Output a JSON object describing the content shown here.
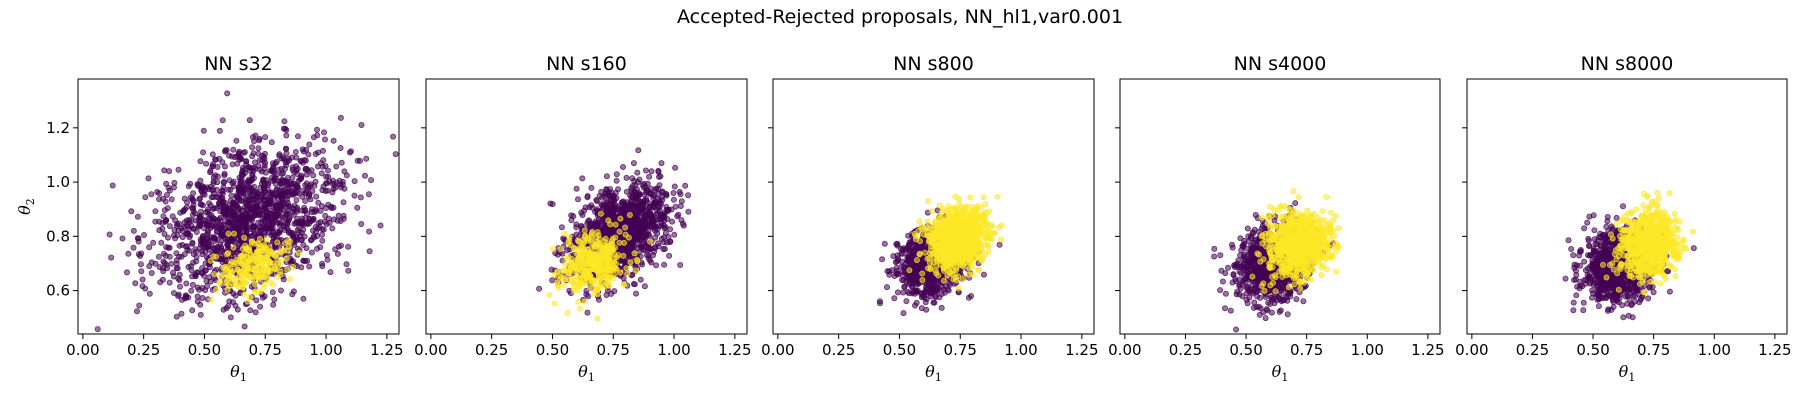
{
  "figure": {
    "title": "Accepted-Rejected proposals, NN_hl1,var0.001"
  },
  "colors": {
    "rejected": "#440154",
    "accepted": "#FDE725",
    "frame": "#000000"
  },
  "chart_data": [
    {
      "type": "scatter",
      "title": "NN s32",
      "xlabel": "θ1",
      "ylabel": "θ2",
      "xlim": [
        -0.02,
        1.3
      ],
      "ylim": [
        0.44,
        1.38
      ],
      "xticks": [
        "0.00",
        "0.25",
        "0.50",
        "0.75",
        "1.00",
        "1.25"
      ],
      "yticks": [
        "0.6",
        "0.8",
        "1.0",
        "1.2"
      ],
      "series": [
        {
          "key": "rejected",
          "center": [
            0.68,
            0.86
          ],
          "spread": [
            0.19,
            0.14
          ],
          "corr": 0.35,
          "points": 1500
        },
        {
          "key": "accepted",
          "center": [
            0.7,
            0.69
          ],
          "spread": [
            0.07,
            0.05
          ],
          "corr": 0.3,
          "points": 220
        }
      ]
    },
    {
      "type": "scatter",
      "title": "NN s160",
      "xlabel": "θ1",
      "ylabel": "",
      "xlim": [
        -0.02,
        1.3
      ],
      "ylim": [
        0.44,
        1.38
      ],
      "xticks": [
        "0.00",
        "0.25",
        "0.50",
        "0.75",
        "1.00",
        "1.25"
      ],
      "yticks": [
        "",
        "",
        "",
        ""
      ],
      "series": [
        {
          "key": "rejected",
          "center": [
            0.77,
            0.81
          ],
          "spread": [
            0.1,
            0.085
          ],
          "corr": 0.4,
          "points": 1300
        },
        {
          "key": "accepted",
          "center": [
            0.67,
            0.71
          ],
          "spread": [
            0.07,
            0.06
          ],
          "corr": 0.3,
          "points": 380
        }
      ]
    },
    {
      "type": "scatter",
      "title": "NN s800",
      "xlabel": "θ1",
      "ylabel": "",
      "xlim": [
        -0.02,
        1.3
      ],
      "ylim": [
        0.44,
        1.38
      ],
      "xticks": [
        "0.00",
        "0.25",
        "0.50",
        "0.75",
        "1.00",
        "1.25"
      ],
      "yticks": [
        "",
        "",
        "",
        ""
      ],
      "series": [
        {
          "key": "rejected",
          "center": [
            0.63,
            0.7
          ],
          "spread": [
            0.07,
            0.065
          ],
          "corr": 0.2,
          "points": 800
        },
        {
          "key": "accepted",
          "center": [
            0.74,
            0.79
          ],
          "spread": [
            0.06,
            0.055
          ],
          "corr": 0.2,
          "points": 900
        }
      ]
    },
    {
      "type": "scatter",
      "title": "NN s4000",
      "xlabel": "θ1",
      "ylabel": "",
      "xlim": [
        -0.02,
        1.3
      ],
      "ylim": [
        0.44,
        1.38
      ],
      "xticks": [
        "0.00",
        "0.25",
        "0.50",
        "0.75",
        "1.00",
        "1.25"
      ],
      "yticks": [
        "",
        "",
        "",
        ""
      ],
      "series": [
        {
          "key": "rejected",
          "center": [
            0.61,
            0.7
          ],
          "spread": [
            0.075,
            0.07
          ],
          "corr": 0.15,
          "points": 900
        },
        {
          "key": "accepted",
          "center": [
            0.72,
            0.77
          ],
          "spread": [
            0.065,
            0.06
          ],
          "corr": 0.15,
          "points": 800
        }
      ]
    },
    {
      "type": "scatter",
      "title": "NN s8000",
      "xlabel": "θ1",
      "ylabel": "",
      "xlim": [
        -0.02,
        1.3
      ],
      "ylim": [
        0.44,
        1.38
      ],
      "xticks": [
        "0.00",
        "0.25",
        "0.50",
        "0.75",
        "1.00",
        "1.25"
      ],
      "yticks": [
        "",
        "",
        "",
        ""
      ],
      "series": [
        {
          "key": "rejected",
          "center": [
            0.61,
            0.69
          ],
          "spread": [
            0.075,
            0.065
          ],
          "corr": 0.1,
          "points": 1000
        },
        {
          "key": "accepted",
          "center": [
            0.73,
            0.77
          ],
          "spread": [
            0.06,
            0.06
          ],
          "corr": 0.1,
          "points": 700
        }
      ]
    }
  ]
}
